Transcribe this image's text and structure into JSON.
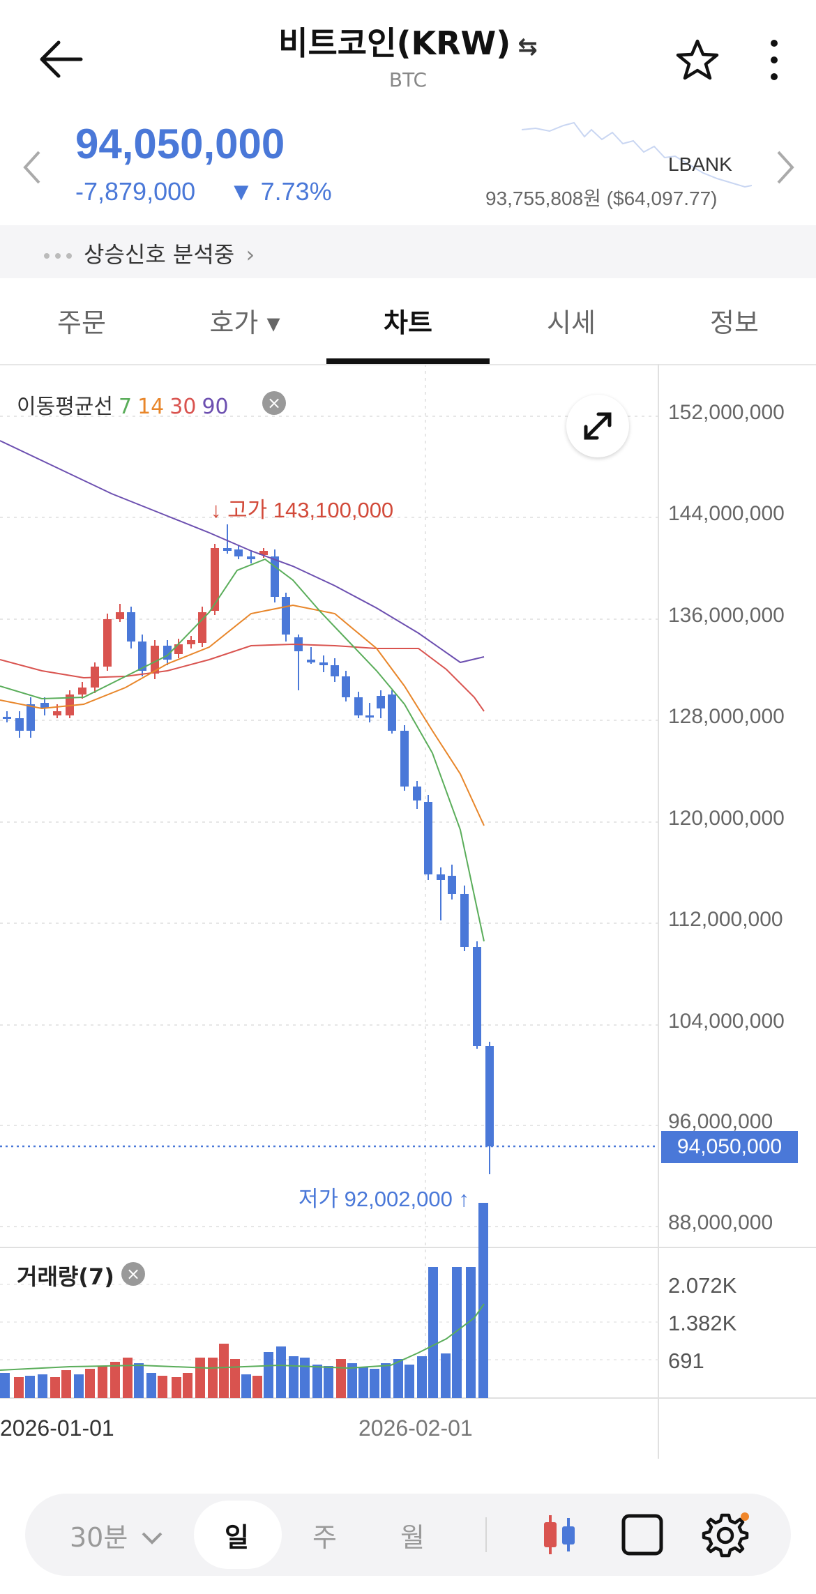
{
  "header": {
    "title": "비트코인(KRW)",
    "swap_icon": "⇆",
    "subtitle": "BTC",
    "back_icon": "arrow-left-icon",
    "star_icon": "star-outline-icon",
    "more_icon": "more-vertical-icon"
  },
  "price": {
    "current": "94,050,000",
    "change": "-7,879,000",
    "rate": "▼ 7.73%",
    "reference_exchange": "LBANK",
    "reference_price": "93,755,808원 ($64,097.77)"
  },
  "signal": {
    "text": "상승신호 분석중",
    "chevron": "›"
  },
  "tabs": [
    {
      "label": "주문"
    },
    {
      "label": "호가 ▾"
    },
    {
      "label": "차트"
    },
    {
      "label": "시세"
    },
    {
      "label": "정보"
    }
  ],
  "chart": {
    "ma_title": "이동평균선",
    "ma_periods": [
      "7",
      "14",
      "30",
      "90"
    ],
    "ma_colors": [
      "#5aad5a",
      "#e8862a",
      "#d9534f",
      "#6c4fb0"
    ],
    "y_axis": [
      "152,000,000",
      "144,000,000",
      "136,000,000",
      "128,000,000",
      "120,000,000",
      "112,000,000",
      "104,000,000",
      "96,000,000",
      "88,000,000"
    ],
    "high_label": "고가 143,100,000",
    "low_label": "저가 92,002,000",
    "current_price_tag": "94,050,000",
    "volume_title": "거래량(7)",
    "volume_axis": [
      "2.072K",
      "1.382K",
      "691"
    ],
    "dates": [
      "2026-01-01",
      "2026-02-01"
    ],
    "up_color": "#d9534f",
    "down_color": "#4a78d8"
  },
  "bottom": {
    "interval_select": "30분",
    "periods": [
      "일",
      "주",
      "월"
    ],
    "selected_period": "일"
  }
}
